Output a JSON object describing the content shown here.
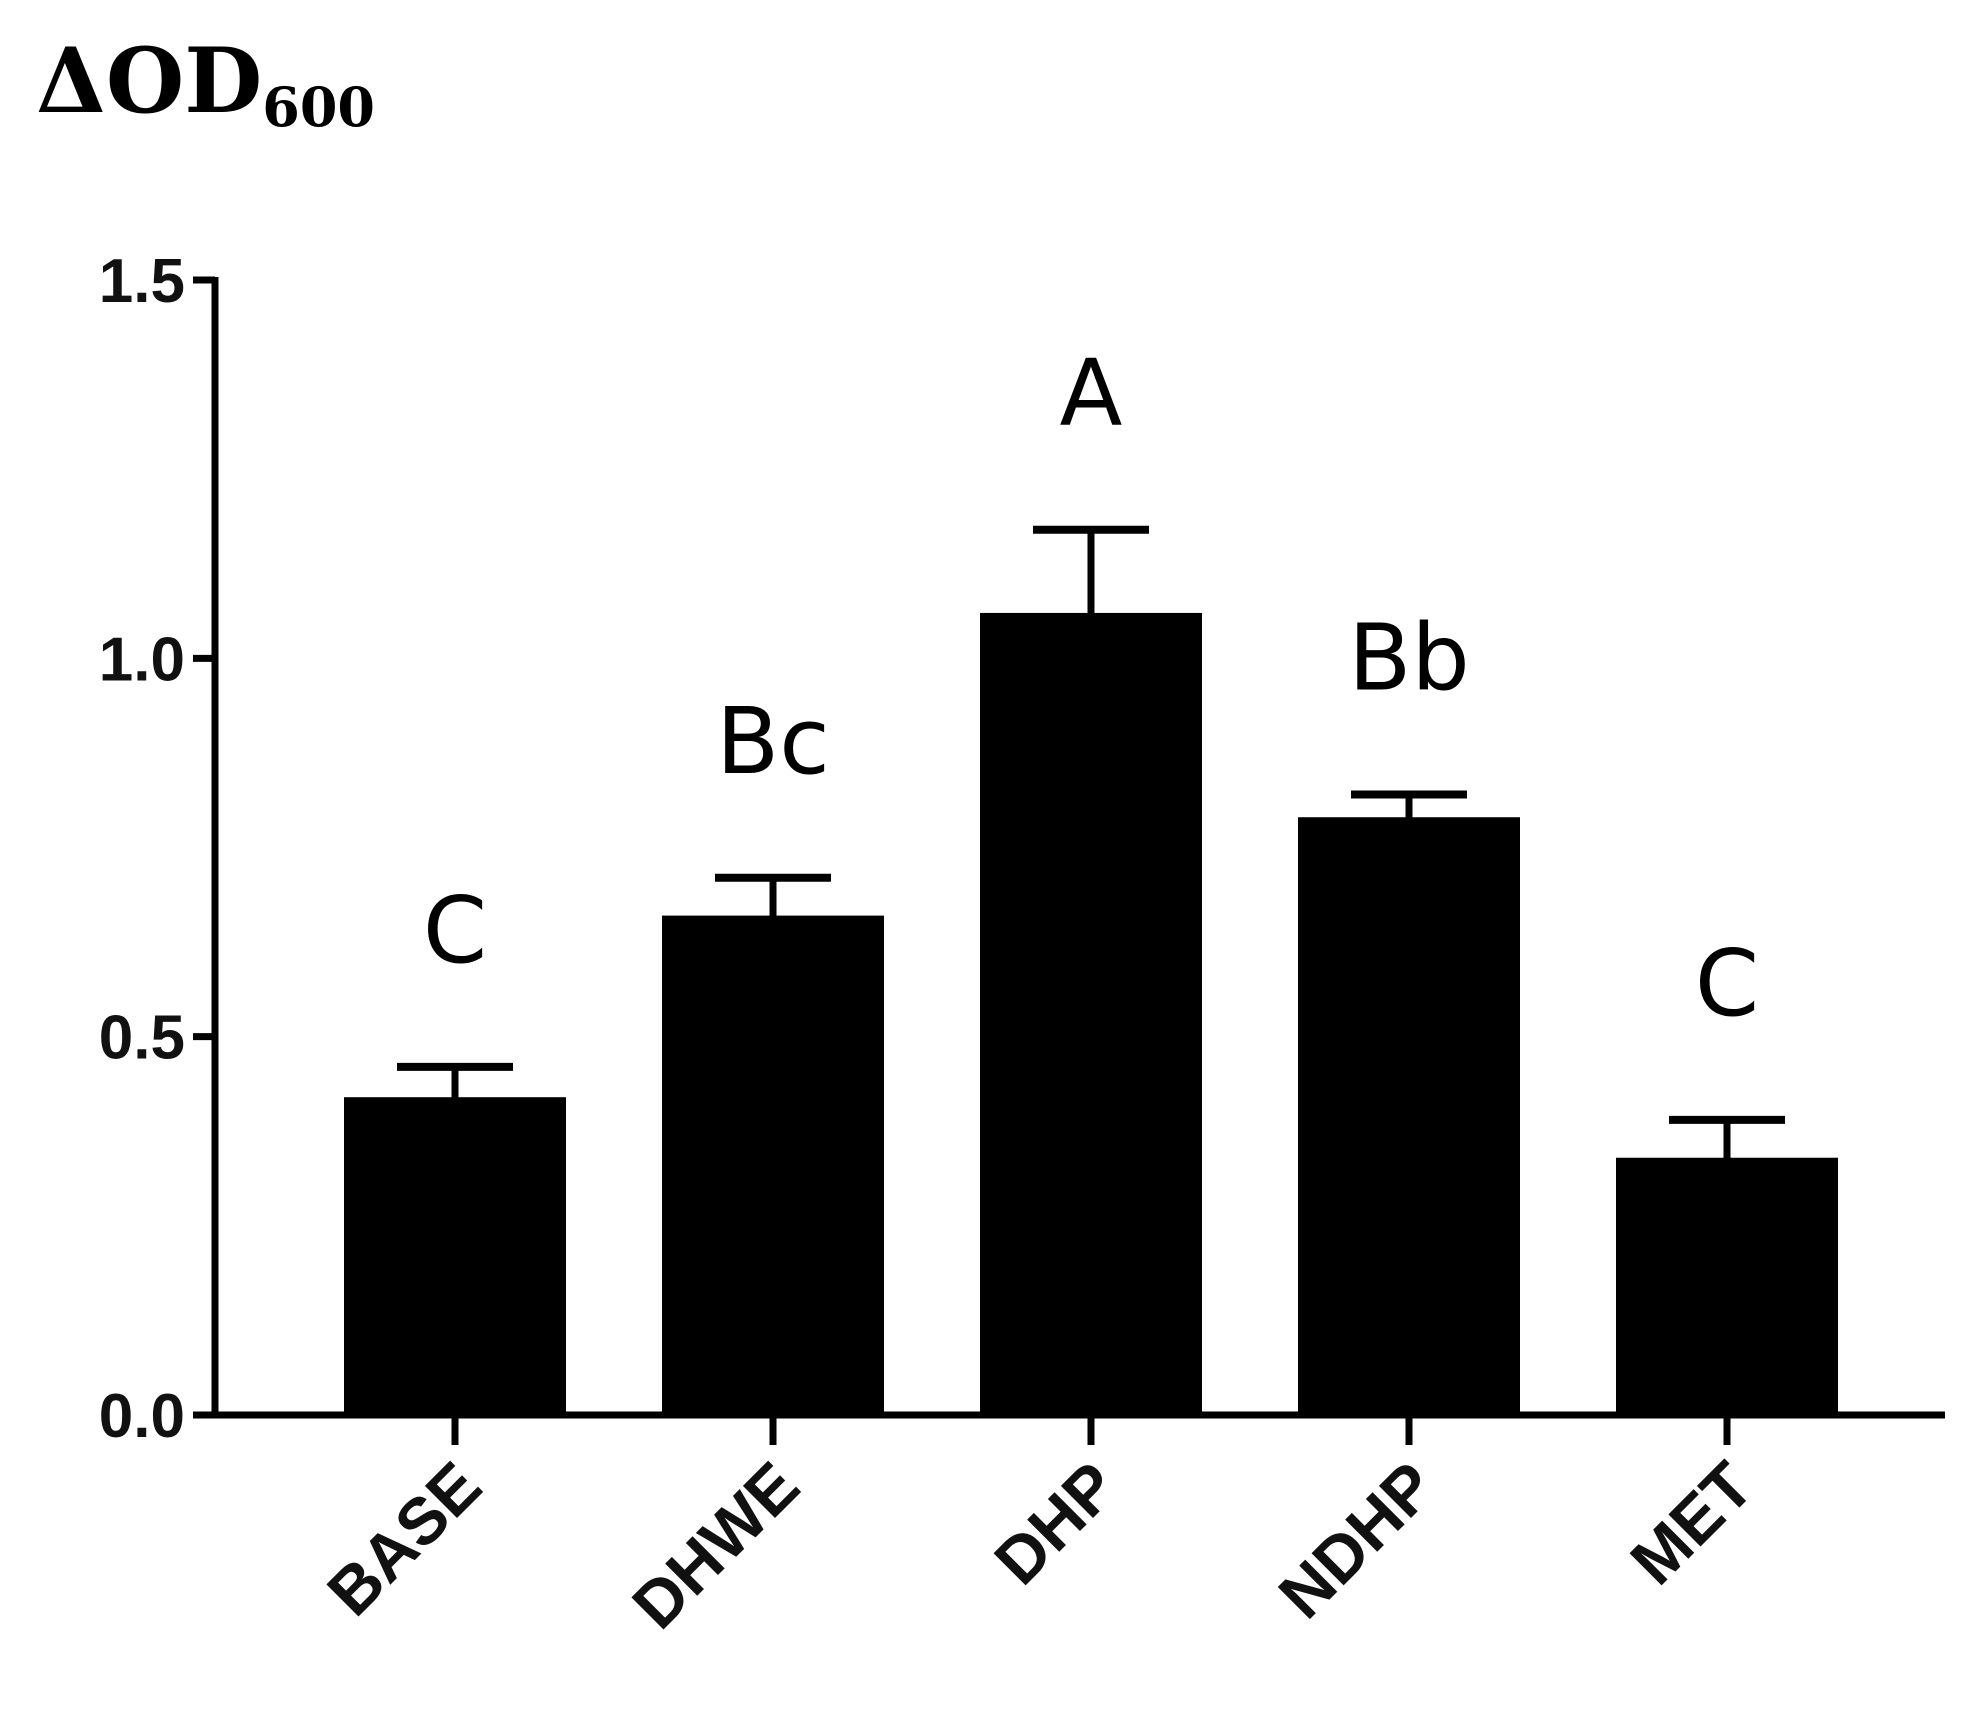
{
  "chart_data": {
    "type": "bar",
    "ylabel": {
      "main": "ΔOD",
      "sub": "600"
    },
    "ylim": [
      0,
      1.5
    ],
    "yticks": [
      "0.0",
      "0.5",
      "1.0",
      "1.5"
    ],
    "ytick_values": [
      0,
      0.5,
      1.0,
      1.5
    ],
    "categories": [
      "BASE",
      "DHWE",
      "DHP",
      "NDHP",
      "MET"
    ],
    "values": [
      0.42,
      0.66,
      1.06,
      0.79,
      0.34
    ],
    "error_upper": [
      0.46,
      0.71,
      1.17,
      0.82,
      0.39
    ],
    "significance_labels": [
      "C",
      "Bc",
      "A",
      "Bb",
      "C"
    ],
    "bar_color": "#000000",
    "grid": false,
    "legend": "none"
  }
}
